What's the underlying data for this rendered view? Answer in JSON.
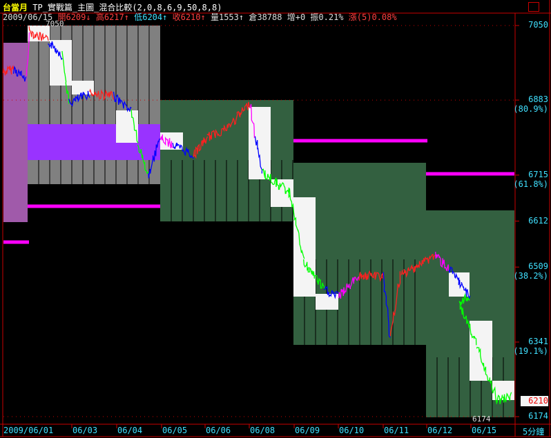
{
  "header": {
    "symbol": "台當月",
    "indicator": "TP_實戰篇_主圖_混合比較(2,0,8,6,9,50,8,8)"
  },
  "info": {
    "date": "2009/06/15",
    "open": "開6209",
    "open_arrow": "↓",
    "high": "高6217",
    "high_arrow": "↑",
    "low": "低6204",
    "low_arrow": "↑",
    "close": "收6210",
    "close_arrow": "↑",
    "volume": "量1553",
    "volume_arrow": "↑",
    "open_interest": "倉38788",
    "change": "增+0",
    "amplitude": "振0.21%",
    "rise": "漲(5)0.08%"
  },
  "chart_data": {
    "type": "line",
    "title": "",
    "x_tick_labels": [
      "2009/06/01",
      "06/03",
      "06/04",
      "06/05",
      "06/06",
      "06/08",
      "06/09",
      "06/10",
      "06/11",
      "06/12",
      "06/15"
    ],
    "timeframe_label": "5分鐘",
    "y_ticks": [
      {
        "value": "7050"
      },
      {
        "value": "6883",
        "pct": "(80.9%)"
      },
      {
        "value": "6715",
        "pct": "(61.8%)"
      },
      {
        "value": "6612"
      },
      {
        "value": "6509",
        "pct": "(38.2%)"
      },
      {
        "value": "6341",
        "pct": "(19.1%)"
      },
      {
        "value": "6174"
      }
    ],
    "ylim": [
      6174,
      7050
    ],
    "high_marker": "7050",
    "low_marker": "6174",
    "current_price": "6210",
    "colors": {
      "up": "#ff2020",
      "down": "#0000ff",
      "strong": "#00ff00",
      "neutral": "#ff00ff",
      "box_gray": "#808080",
      "box_green": "#336040",
      "band_purple": "#9933ff",
      "fib_line": "#ff00ff"
    }
  }
}
